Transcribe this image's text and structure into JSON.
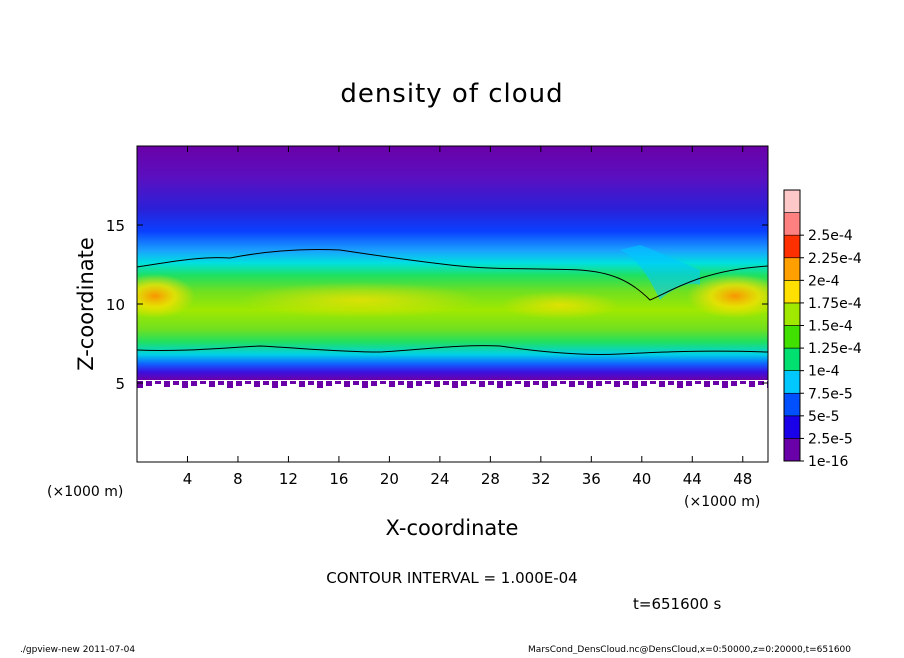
{
  "chart_data": {
    "type": "heatmap",
    "title": "density of cloud",
    "xlabel": "X-coordinate",
    "ylabel": "Z-coordinate",
    "x_unit": "(×1000 m)",
    "y_unit": "(×1000 m)",
    "xlim": [
      0,
      50
    ],
    "ylim": [
      0,
      20
    ],
    "x_ticks": [
      4,
      8,
      12,
      16,
      20,
      24,
      28,
      32,
      36,
      40,
      44,
      48
    ],
    "y_ticks": [
      5,
      10,
      15
    ],
    "colorbar": {
      "levels": [
        "1e-16",
        "2.5e-5",
        "5e-5",
        "7.5e-5",
        "1e-4",
        "1.25e-4",
        "1.5e-4",
        "1.75e-4",
        "2e-4",
        "2.25e-4",
        "2.5e-4"
      ],
      "colors": [
        "#6a00a8",
        "#1a00e8",
        "#0050ff",
        "#00c8ff",
        "#00e070",
        "#40e000",
        "#a0e800",
        "#ffe000",
        "#ffa000",
        "#ff3000",
        "#ff8080",
        "#ffc8c8"
      ]
    },
    "contour_interval": "CONTOUR INTERVAL = 1.000E-04",
    "time_label": "t=651600 s"
  },
  "footer": {
    "left": "./gpview-new  2011-07-04",
    "right": "MarsCond_DensCloud.nc@DensCloud,x=0:50000,z=0:20000,t=651600"
  },
  "colors": {
    "top_purple": "#6a00a8",
    "blue": "#1a1ae0",
    "cyan": "#00c8ff",
    "green": "#30e030",
    "yellow": "#e0e000",
    "orange": "#ff9000"
  }
}
